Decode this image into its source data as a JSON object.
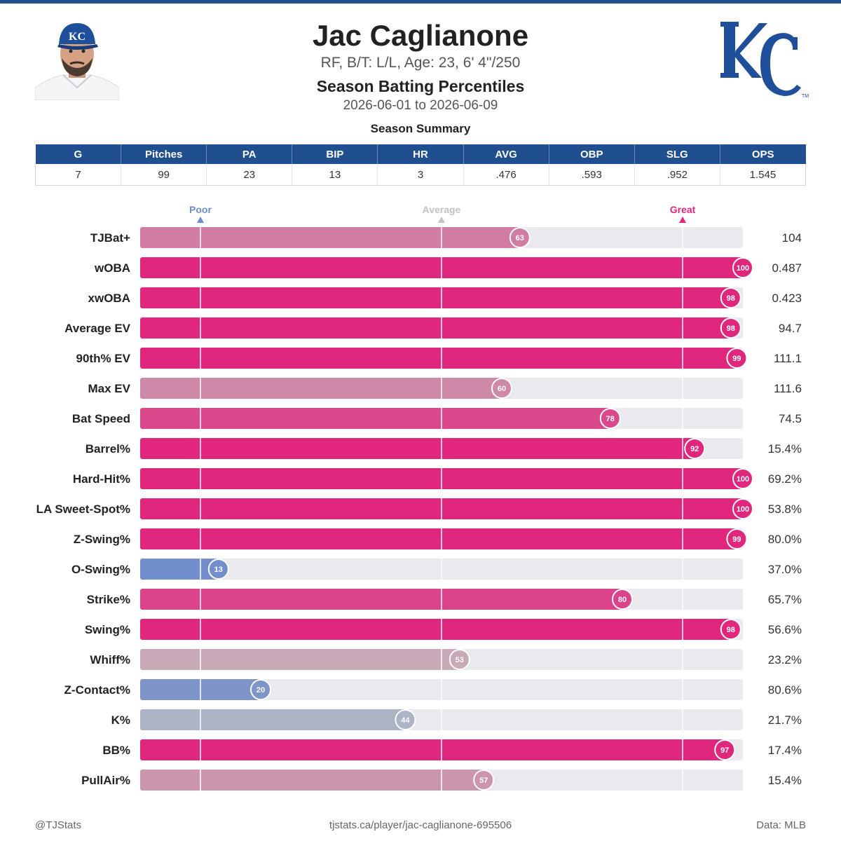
{
  "header": {
    "name": "Jac Caglianone",
    "bio": "RF, B/T: L/L, Age: 23, 6' 4\"/250",
    "title": "Season Batting Percentiles",
    "dates": "2026-06-01 to 2026-06-09"
  },
  "summary": {
    "title": "Season Summary",
    "columns": [
      "G",
      "Pitches",
      "PA",
      "BIP",
      "HR",
      "AVG",
      "OBP",
      "SLG",
      "OPS"
    ],
    "values": [
      "7",
      "99",
      "23",
      "13",
      "3",
      ".476",
      ".593",
      ".952",
      "1.545"
    ]
  },
  "colors": {
    "brand": "#1f4f8f",
    "great": "#e0267d",
    "poor": "#6e8bcc",
    "average": "#c3c3c3",
    "track": "#e9e9ee"
  },
  "chart_data": {
    "type": "bar",
    "orientation": "horizontal",
    "xlim": [
      0,
      100
    ],
    "scale_labels": [
      {
        "label": "Poor",
        "percentile": 10
      },
      {
        "label": "Average",
        "percentile": 50
      },
      {
        "label": "Great",
        "percentile": 90
      }
    ],
    "categories": [
      "TJBat+",
      "wOBA",
      "xwOBA",
      "Average EV",
      "90th% EV",
      "Max EV",
      "Bat Speed",
      "Barrel%",
      "Hard-Hit%",
      "LA Sweet-Spot%",
      "Z-Swing%",
      "O-Swing%",
      "Strike%",
      "Swing%",
      "Whiff%",
      "Z-Contact%",
      "K%",
      "BB%",
      "PullAir%"
    ],
    "percentiles": [
      63,
      100,
      98,
      98,
      99,
      60,
      78,
      92,
      100,
      100,
      99,
      13,
      80,
      98,
      53,
      20,
      44,
      97,
      57
    ],
    "stat_values": [
      "104",
      "0.487",
      "0.423",
      "94.7",
      "111.1",
      "111.6",
      "74.5",
      "15.4%",
      "69.2%",
      "53.8%",
      "80.0%",
      "37.0%",
      "65.7%",
      "56.6%",
      "23.2%",
      "80.6%",
      "21.7%",
      "17.4%",
      "15.4%"
    ]
  },
  "footer": {
    "left": "@TJStats",
    "center": "tjstats.ca/player/jac-caglianone-695506",
    "right": "Data: MLB"
  }
}
